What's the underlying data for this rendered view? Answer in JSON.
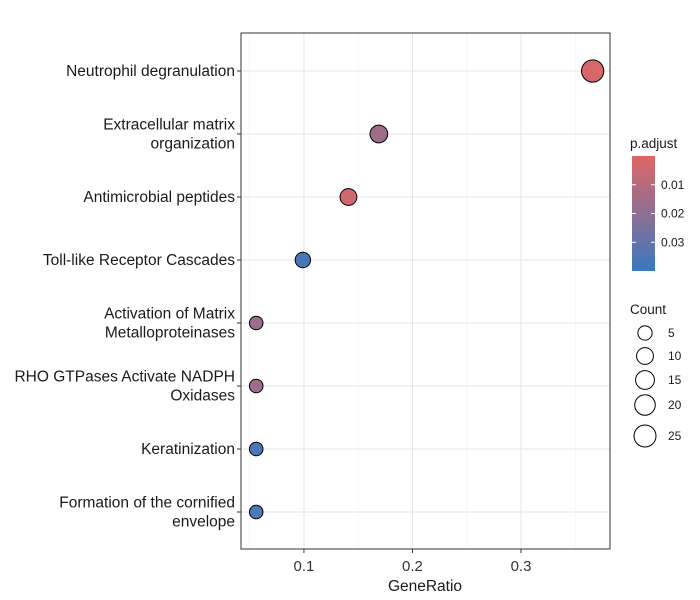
{
  "chart_data": {
    "type": "scatter",
    "title": "",
    "xlabel": "GeneRatio",
    "ylabel": "",
    "xlim": [
      0.042,
      0.382
    ],
    "xticks": [
      0.1,
      0.2,
      0.3
    ],
    "xtick_labels": [
      "0.1",
      "0.2",
      "0.3"
    ],
    "grid": true,
    "categories": [
      "Neutrophil degranulation",
      "Extracellular matrix organization",
      "Antimicrobial peptides",
      "Toll-like Receptor Cascades",
      "Activation of Matrix Metalloproteinases",
      "RHO GTPases Activate NADPH Oxidases",
      "Keratinization",
      "Formation of the cornified envelope"
    ],
    "category_lines": [
      [
        "Neutrophil degranulation"
      ],
      [
        "Extracellular matrix",
        "organization"
      ],
      [
        "Antimicrobial peptides"
      ],
      [
        "Toll-like Receptor Cascades"
      ],
      [
        "Activation of Matrix",
        "Metalloproteinases"
      ],
      [
        "RHO GTPases Activate NADPH",
        "Oxidases"
      ],
      [
        "Keratinization"
      ],
      [
        "Formation of the cornified",
        "envelope"
      ]
    ],
    "points": [
      {
        "term": "Neutrophil degranulation",
        "gene_ratio": 0.366,
        "count": 26,
        "p_adjust": 0.002
      },
      {
        "term": "Extracellular matrix organization",
        "gene_ratio": 0.169,
        "count": 12,
        "p_adjust": 0.016
      },
      {
        "term": "Antimicrobial peptides",
        "gene_ratio": 0.141,
        "count": 10,
        "p_adjust": 0.004
      },
      {
        "term": "Toll-like Receptor Cascades",
        "gene_ratio": 0.099,
        "count": 7,
        "p_adjust": 0.037
      },
      {
        "term": "Activation of Matrix Metalloproteinases",
        "gene_ratio": 0.056,
        "count": 4,
        "p_adjust": 0.017
      },
      {
        "term": "RHO GTPases Activate NADPH Oxidases",
        "gene_ratio": 0.056,
        "count": 4,
        "p_adjust": 0.016
      },
      {
        "term": "Keratinization",
        "gene_ratio": 0.056,
        "count": 4,
        "p_adjust": 0.036
      },
      {
        "term": "Formation of the cornified envelope",
        "gene_ratio": 0.056,
        "count": 4,
        "p_adjust": 0.035
      }
    ],
    "color_legend": {
      "title": "p.adjust",
      "range": [
        0.0,
        0.04
      ],
      "low_color": "#e06666",
      "high_color": "#3a78c0",
      "ticks": [
        0.01,
        0.02,
        0.03
      ],
      "tick_labels": [
        "0.01",
        "0.02",
        "0.03"
      ]
    },
    "size_legend": {
      "title": "Count",
      "values": [
        5,
        10,
        15,
        20,
        25
      ],
      "labels": [
        "5",
        "10",
        "15",
        "20",
        "25"
      ]
    },
    "legend_position": "right"
  }
}
